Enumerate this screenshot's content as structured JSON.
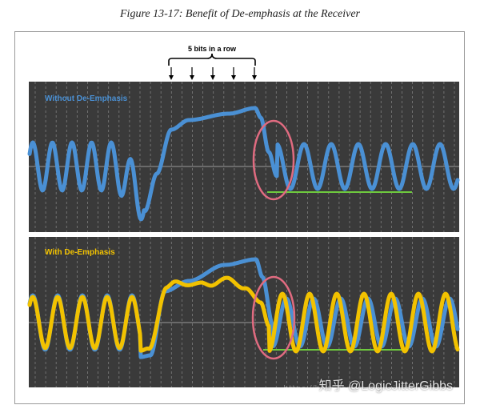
{
  "caption": "Figure 13-17: Benefit of De-emphasis at the Receiver",
  "bit_annotation": "5 bits in a row",
  "top_panel": {
    "label": "Without De-Emphasis"
  },
  "bottom_panel": {
    "label": "With De-Emphasis"
  },
  "watermark": "知乎 @LogicJitterGibbs",
  "watermark_url": "https://blog.csdn.net/LogicJitterGibbs",
  "colors": {
    "panel_bg": "#3a3a3a",
    "grid": "#7e7e7e",
    "blue_signal": "#4a90d4",
    "yellow_signal": "#f2c200",
    "ellipse": "#e06b80",
    "level_line": "#6ec93e",
    "label_blue": "#4a90d4",
    "label_yellow": "#f2c200"
  }
}
